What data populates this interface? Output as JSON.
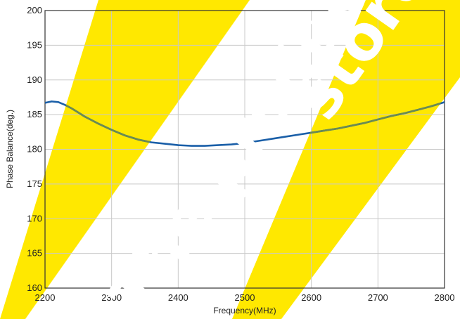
{
  "chart_data": {
    "type": "line",
    "title": "",
    "xlabel": "Frequency(MHz)",
    "ylabel": "Phase Balance(deg.)",
    "xlim": [
      2200,
      2800
    ],
    "ylim": [
      160,
      200
    ],
    "xticks": [
      2200,
      2300,
      2400,
      2500,
      2600,
      2700,
      2800
    ],
    "yticks": [
      160,
      165,
      170,
      175,
      180,
      185,
      190,
      195,
      200
    ],
    "grid": true,
    "series": [
      {
        "color": "#1a5fa8",
        "x": [
          2200,
          2210,
          2220,
          2230,
          2240,
          2250,
          2260,
          2280,
          2300,
          2320,
          2340,
          2360,
          2380,
          2400,
          2420,
          2440,
          2460,
          2480,
          2500,
          2520,
          2540,
          2560,
          2580,
          2600,
          2620,
          2640,
          2660,
          2680,
          2700,
          2720,
          2740,
          2760,
          2780,
          2800
        ],
        "y": [
          186.7,
          186.9,
          186.8,
          186.4,
          185.9,
          185.3,
          184.7,
          183.7,
          182.8,
          182.0,
          181.4,
          181.0,
          180.8,
          180.6,
          180.5,
          180.5,
          180.6,
          180.7,
          180.9,
          181.2,
          181.5,
          181.8,
          182.1,
          182.4,
          182.7,
          183.0,
          183.4,
          183.8,
          184.3,
          184.8,
          185.2,
          185.7,
          186.2,
          186.8
        ]
      }
    ]
  },
  "colors": {
    "watermark": "#ffe800",
    "curve_on_watermark": "#6b8b52",
    "grid": "#c8c8c8"
  },
  "watermark_text": [
    "The product",
    "store"
  ]
}
